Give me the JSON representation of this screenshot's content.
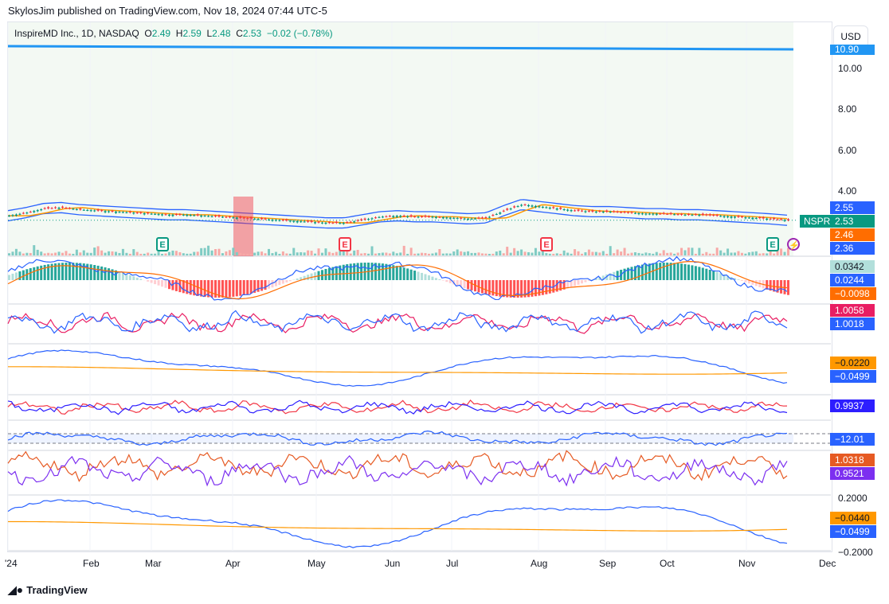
{
  "header": {
    "published": "SkylosJim published on TradingView.com, Nov 18, 2024 07:44 UTC-5"
  },
  "legend": {
    "symbol": "InspireMD Inc., 1D, NASDAQ",
    "open_label": "O",
    "open": "2.49",
    "high_label": "H",
    "high": "2.59",
    "low_label": "L",
    "low": "2.48",
    "close_label": "C",
    "close": "2.53",
    "change": "−0.02 (−0.78%)"
  },
  "currency": "USD",
  "ticker_tag": "NSPR",
  "footer": {
    "brand": "TradingView"
  },
  "earnings": {
    "label": "E"
  },
  "colors": {
    "up": "#089981",
    "down": "#f23645",
    "blue": "#2962ff",
    "orange": "#ff9800",
    "bg_main": "#f3f9f3"
  },
  "chart_data": {
    "type": "line",
    "title": "InspireMD Inc., 1D, NASDAQ",
    "x_ticks": [
      "'24",
      "Feb",
      "Mar",
      "Apr",
      "May",
      "Jun",
      "Jul",
      "Aug",
      "Sep",
      "Oct",
      "Nov",
      "Dec"
    ],
    "y_ticks": [
      "10.00",
      "8.00",
      "6.00",
      "4.00"
    ],
    "ylim": [
      2.0,
      11.0
    ],
    "price_closes_weekly": [
      2.75,
      2.9,
      3.1,
      3.15,
      3.05,
      3.0,
      2.95,
      2.9,
      2.85,
      2.8,
      2.8,
      2.75,
      2.7,
      2.65,
      2.6,
      2.55,
      2.5,
      2.45,
      2.4,
      2.4,
      2.55,
      2.7,
      2.75,
      2.7,
      2.7,
      2.65,
      2.6,
      2.65,
      3.0,
      3.3,
      3.2,
      3.1,
      3.0,
      2.95,
      2.95,
      2.9,
      2.85,
      2.85,
      2.8,
      2.8,
      2.75,
      2.7,
      2.65,
      2.6,
      2.53
    ],
    "reference_line": {
      "value": "10.90"
    },
    "price_labels": [
      "2.55",
      "2.53",
      "2.46",
      "2.36"
    ],
    "pane_values": [
      [
        "0.0342",
        "0.0244",
        "−0.0098"
      ],
      [
        "1.0058",
        "1.0018"
      ],
      [
        "−0.0220",
        "−0.0499"
      ],
      [
        "0.9937"
      ],
      [
        "−12.01"
      ],
      [
        "1.0318",
        "0.9521"
      ],
      [
        "0.2000",
        "−0.0440",
        "−0.0499",
        "−0.2000"
      ]
    ]
  }
}
